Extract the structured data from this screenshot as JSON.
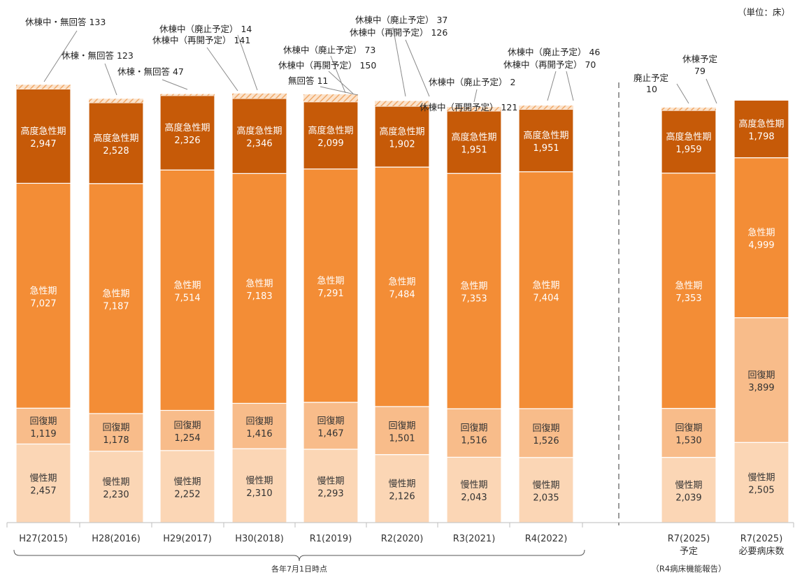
{
  "unit_label": "（単位：床）",
  "footnote_years": "各年7月1日時点",
  "footnote_r7": "（R4病床機能報告）",
  "colors": {
    "high_acute": "#c65a08",
    "acute": "#f38d36",
    "recovery": "#f8bc8a",
    "chronic": "#fbd6b5",
    "suspended": "#f3c69d",
    "axis": "#9a9a9a",
    "label_dark": "#ffffff",
    "label_light": "#333333"
  },
  "chart_data": {
    "type": "bar",
    "stacked": true,
    "categories": [
      [
        "H27(2015)"
      ],
      [
        "H28(2016)"
      ],
      [
        "H29(2017)"
      ],
      [
        "H30(2018)"
      ],
      [
        "R1(2019)"
      ],
      [
        "R2(2020)"
      ],
      [
        "R3(2021)"
      ],
      [
        "R4(2022)"
      ],
      [
        "R7(2025)",
        "予定"
      ],
      [
        "R7(2025)",
        "必要病床数"
      ]
    ],
    "series": [
      {
        "name": "慢性期",
        "values": [
          2457,
          2230,
          2252,
          2310,
          2293,
          2126,
          2043,
          2035,
          2039,
          2505
        ]
      },
      {
        "name": "回復期",
        "values": [
          1119,
          1178,
          1254,
          1416,
          1467,
          1501,
          1516,
          1526,
          1530,
          3899
        ]
      },
      {
        "name": "急性期",
        "values": [
          7027,
          7187,
          7514,
          7183,
          7291,
          7484,
          7353,
          7404,
          7353,
          4999
        ]
      },
      {
        "name": "高度急性期",
        "values": [
          2947,
          2528,
          2326,
          2346,
          2099,
          1902,
          1951,
          1951,
          1959,
          1798
        ]
      }
    ],
    "suspended_values": [
      133,
      123,
      47,
      155,
      234,
      163,
      123,
      116,
      89,
      0
    ],
    "annotations": [
      {
        "lines": [
          "休棟中・無回答 133"
        ]
      },
      {
        "lines": [
          "休棟・無回答 123"
        ]
      },
      {
        "lines": [
          "休棟・無回答 47"
        ]
      },
      {
        "lines": [
          "休棟中（廃止予定） 14",
          "休棟中（再開予定） 141"
        ]
      },
      {
        "lines": [
          "休棟中（廃止予定） 73",
          "休棟中（再開予定） 150",
          "無回答 11"
        ]
      },
      {
        "lines": [
          "休棟中（廃止予定） 37",
          "休棟中（再開予定） 126"
        ]
      },
      {
        "lines": [
          "休棟中（廃止予定） 2",
          "休棟中（再開予定） 121"
        ]
      },
      {
        "lines": [
          "休棟中（廃止予定） 46",
          "休棟中（再開予定） 70"
        ]
      },
      {
        "lines": [
          "廃止予定",
          "10"
        ]
      },
      {
        "lines": [
          "休棟予定",
          "79"
        ]
      }
    ],
    "xlabel": "",
    "ylabel": ""
  }
}
